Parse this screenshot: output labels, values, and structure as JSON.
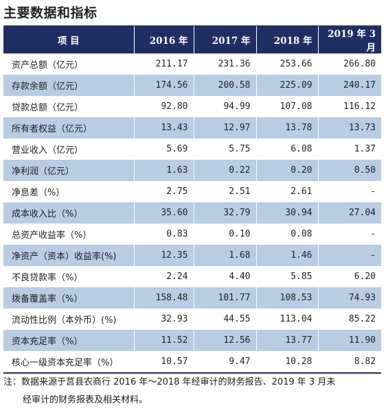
{
  "title": "主要数据和指标",
  "table": {
    "headers": [
      "项  目",
      "2016 年",
      "2017 年",
      "2018 年",
      "2019 年 3 月"
    ],
    "rows": [
      {
        "label": "资产总额（亿元）",
        "values": [
          "211.17",
          "231.36",
          "253.66",
          "266.80"
        ]
      },
      {
        "label": "存款余额（亿元）",
        "values": [
          "174.56",
          "200.58",
          "225.09",
          "240.17"
        ]
      },
      {
        "label": "贷款总额（亿元）",
        "values": [
          "92.80",
          "94.99",
          "107.08",
          "116.12"
        ]
      },
      {
        "label": "所有者权益（亿元）",
        "values": [
          "13.43",
          "12.97",
          "13.78",
          "13.73"
        ]
      },
      {
        "label": "营业收入（亿元）",
        "values": [
          "5.69",
          "5.75",
          "6.08",
          "1.37"
        ]
      },
      {
        "label": "净利润（亿元）",
        "values": [
          "1.63",
          "0.22",
          "0.20",
          "0.50"
        ]
      },
      {
        "label": "净息差（%）",
        "values": [
          "2.75",
          "2.51",
          "2.61",
          "-"
        ]
      },
      {
        "label": "成本收入比（%）",
        "values": [
          "35.60",
          "32.79",
          "30.94",
          "27.04"
        ]
      },
      {
        "label": "总资产收益率（%）",
        "values": [
          "0.83",
          "0.10",
          "0.08",
          "-"
        ]
      },
      {
        "label": "净资产（资本）收益率(%)",
        "values": [
          "12.35",
          "1.68",
          "1.46",
          "-"
        ]
      },
      {
        "label": "不良贷款率（%）",
        "values": [
          "2.24",
          "4.40",
          "5.85",
          "6.20"
        ]
      },
      {
        "label": "拨备覆盖率（%）",
        "values": [
          "158.48",
          "101.77",
          "108.53",
          "74.93"
        ]
      },
      {
        "label": "流动性比例（本外币）(%)",
        "values": [
          "32.93",
          "44.55",
          "113.04",
          "85.22"
        ]
      },
      {
        "label": "资本充足率（%）",
        "values": [
          "11.52",
          "12.56",
          "13.77",
          "11.90"
        ]
      },
      {
        "label": "核心一级资本充足率（%）",
        "values": [
          "10.57",
          "9.47",
          "10.28",
          "8.82"
        ]
      }
    ]
  },
  "note": {
    "line1": "注：数据来源于莒县农商行 2016 年～2018 年经审计的财务报告、2019 年 3 月未",
    "line2": "经审计的财务报表及相关材料。"
  },
  "colors": {
    "header_bg": "#1f2f63",
    "alt_row_bg": "#b8cce4"
  }
}
